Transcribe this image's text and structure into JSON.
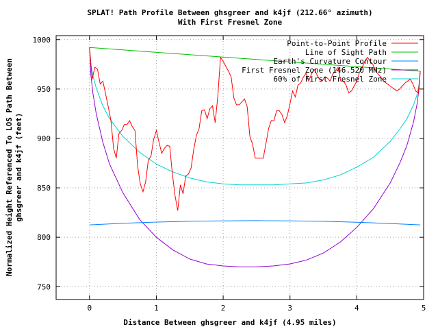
{
  "chart_data": {
    "type": "line",
    "title": "SPLAT! Path Profile Between ghsgreer and k4jf (212.66° azimuth)",
    "subtitle": "With First Fresnel Zone",
    "xlabel": "Distance Between ghsgreer and k4jf (4.95 miles)",
    "ylabel_line1": "Normalized Height Referenced To LOS Path Between",
    "ylabel_line2": "ghsgreer and k4jf (feet)",
    "xlim": [
      -0.5,
      5
    ],
    "ylim": [
      737,
      1004
    ],
    "xticks": [
      0,
      1,
      2,
      3,
      4,
      5
    ],
    "yticks": [
      750,
      800,
      850,
      900,
      950,
      1000
    ],
    "grid": true,
    "legend_position": "top-right",
    "series": [
      {
        "name": "Point-to-Point Profile",
        "color": "#ff0000",
        "x": [
          0,
          0.04,
          0.08,
          0.12,
          0.16,
          0.2,
          0.24,
          0.28,
          0.32,
          0.36,
          0.4,
          0.44,
          0.48,
          0.52,
          0.56,
          0.6,
          0.64,
          0.68,
          0.72,
          0.76,
          0.8,
          0.84,
          0.88,
          0.92,
          0.96,
          1.0,
          1.04,
          1.08,
          1.12,
          1.16,
          1.2,
          1.24,
          1.28,
          1.32,
          1.36,
          1.4,
          1.44,
          1.48,
          1.52,
          1.56,
          1.6,
          1.64,
          1.68,
          1.72,
          1.76,
          1.8,
          1.84,
          1.88,
          1.92,
          1.96,
          2.0,
          2.04,
          2.08,
          2.12,
          2.16,
          2.2,
          2.24,
          2.28,
          2.32,
          2.36,
          2.4,
          2.44,
          2.48,
          2.52,
          2.56,
          2.6,
          2.64,
          2.68,
          2.72,
          2.76,
          2.8,
          2.84,
          2.88,
          2.92,
          2.96,
          3.0,
          3.04,
          3.08,
          3.12,
          3.16,
          3.2,
          3.24,
          3.28,
          3.32,
          3.36,
          3.4,
          3.44,
          3.48,
          3.52,
          3.56,
          3.6,
          3.64,
          3.68,
          3.72,
          3.76,
          3.8,
          3.84,
          3.88,
          3.92,
          3.96,
          4.0,
          4.04,
          4.08,
          4.12,
          4.16,
          4.2,
          4.24,
          4.28,
          4.32,
          4.36,
          4.4,
          4.44,
          4.48,
          4.52,
          4.56,
          4.6,
          4.64,
          4.68,
          4.72,
          4.76,
          4.8,
          4.84,
          4.88,
          4.92,
          4.95
        ],
        "y": [
          992,
          960,
          972,
          970,
          955,
          958,
          945,
          932,
          918,
          890,
          880,
          905,
          908,
          914,
          914,
          918,
          912,
          908,
          872,
          854,
          846,
          856,
          878,
          882,
          899,
          908,
          896,
          885,
          890,
          893,
          892,
          864,
          842,
          827,
          853,
          844,
          862,
          864,
          870,
          889,
          903,
          910,
          928,
          929,
          920,
          930,
          933,
          916,
          943,
          982,
          978,
          973,
          968,
          962,
          941,
          934,
          934,
          937,
          940,
          932,
          902,
          894,
          880,
          880,
          880,
          880,
          895,
          910,
          918,
          918,
          928,
          928,
          924,
          916,
          923,
          935,
          948,
          942,
          954,
          956,
          962,
          966,
          958,
          965,
          970,
          965,
          960,
          958,
          962,
          961,
          958,
          965,
          968,
          972,
          958,
          958,
          954,
          946,
          948,
          953,
          958,
          967,
          972,
          978,
          982,
          978,
          975,
          968,
          965,
          962,
          958,
          956,
          954,
          952,
          950,
          948,
          950,
          953,
          956,
          958,
          960,
          955,
          948,
          946,
          968
        ]
      },
      {
        "name": "Line of Sight Path",
        "color": "#00c000",
        "x": [
          0,
          4.95
        ],
        "y": [
          992,
          968
        ]
      },
      {
        "name": "Earth's Curvature Contour",
        "color": "#0080ff",
        "x": [
          0,
          0.5,
          1.0,
          1.5,
          2.0,
          2.5,
          3.0,
          3.5,
          4.0,
          4.5,
          4.95
        ],
        "y": [
          812.5,
          814.2,
          815.4,
          816.2,
          816.6,
          816.8,
          816.6,
          816.1,
          815.2,
          813.9,
          812.5
        ]
      },
      {
        "name": "First Fresnel Zone (146.520 MHz)",
        "color": "#9400d3",
        "x": [
          0,
          0.02,
          0.05,
          0.1,
          0.2,
          0.3,
          0.5,
          0.75,
          1.0,
          1.25,
          1.5,
          1.75,
          2.0,
          2.25,
          2.48,
          2.75,
          3.0,
          3.25,
          3.5,
          3.75,
          4.0,
          4.25,
          4.5,
          4.65,
          4.75,
          4.85,
          4.9,
          4.93,
          4.95
        ],
        "y": [
          992,
          964,
          946,
          925,
          896,
          874,
          845,
          818,
          800,
          787,
          778,
          773,
          771,
          770,
          770,
          771,
          773,
          777,
          784,
          795,
          810,
          829,
          855,
          876,
          893,
          917,
          934,
          950,
          968
        ]
      },
      {
        "name": "60% of First Fresnel Zone",
        "color": "#00d0d0",
        "x": [
          0,
          0.02,
          0.05,
          0.1,
          0.2,
          0.3,
          0.5,
          0.75,
          1.0,
          1.25,
          1.5,
          1.75,
          2.0,
          2.25,
          2.48,
          2.75,
          3.0,
          3.25,
          3.5,
          3.75,
          4.0,
          4.25,
          4.5,
          4.65,
          4.75,
          4.85,
          4.9,
          4.93,
          4.95
        ],
        "y": [
          992,
          975,
          964,
          951,
          933,
          920,
          902,
          886,
          874,
          866,
          860,
          856,
          854,
          853,
          853,
          853,
          854,
          855,
          858,
          863,
          871,
          881,
          897,
          910,
          920,
          934,
          944,
          954,
          968
        ]
      }
    ]
  }
}
